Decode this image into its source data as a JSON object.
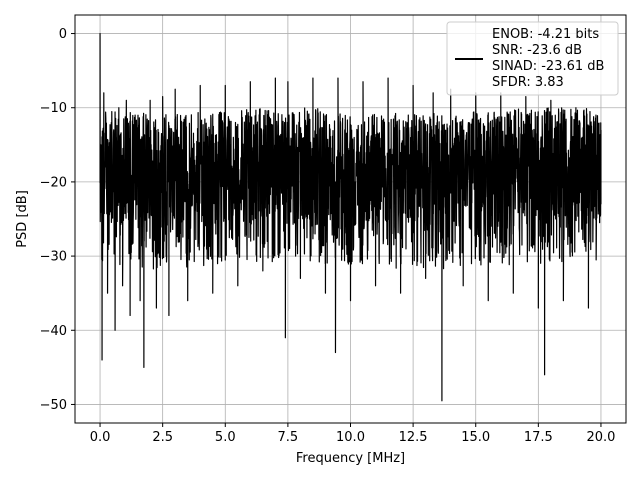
{
  "chart_data": {
    "type": "line",
    "xlabel": "Frequency [MHz]",
    "ylabel": "PSD [dB]",
    "xlim": [
      -1.0,
      21.0
    ],
    "ylim": [
      -52.5,
      2.5
    ],
    "xticks": [
      "0.0",
      "2.5",
      "5.0",
      "7.5",
      "10.0",
      "12.5",
      "15.0",
      "17.5",
      "20.0"
    ],
    "yticks": [
      "0",
      "−10",
      "−20",
      "−30",
      "−40",
      "−50"
    ],
    "grid": true,
    "legend_position": "top-right",
    "legend": [
      "ENOB: -4.21 bits",
      "SNR: -23.6 dB",
      "SINAD: -23.61 dB",
      "SFDR: 3.83"
    ],
    "line_color": "#000000",
    "series": [
      {
        "x": [
          0.0,
          0.03,
          0.08,
          0.15,
          0.3,
          0.45,
          0.6,
          0.75,
          0.9,
          1.05,
          1.2,
          1.4,
          1.6,
          1.75,
          2.0,
          2.25,
          2.5,
          2.75,
          3.0,
          3.5,
          4.0,
          4.5,
          5.0,
          5.5,
          6.0,
          6.5,
          7.0,
          7.4,
          7.5,
          8.0,
          8.5,
          9.0,
          9.4,
          9.5,
          10.0,
          10.5,
          11.0,
          11.5,
          12.0,
          12.5,
          13.0,
          13.3,
          13.65,
          14.0,
          14.5,
          15.0,
          15.5,
          16.0,
          16.5,
          17.0,
          17.5,
          17.75,
          18.0,
          18.5,
          19.0,
          19.5,
          19.8,
          20.0
        ],
        "y": [
          0.0,
          -15.0,
          -44.0,
          -8.0,
          -35.0,
          -12.0,
          -40.0,
          -10.0,
          -34.0,
          -9.0,
          -38.0,
          -11.0,
          -36.0,
          -45.0,
          -9.0,
          -37.0,
          -8.5,
          -38.0,
          -7.5,
          -36.0,
          -7.0,
          -35.0,
          -7.0,
          -34.0,
          -6.5,
          -32.0,
          -6.0,
          -41.0,
          -6.5,
          -33.0,
          -6.0,
          -35.0,
          -43.0,
          -6.0,
          -36.0,
          -6.5,
          -34.0,
          -6.0,
          -35.0,
          -7.0,
          -33.0,
          -8.0,
          -49.5,
          -7.5,
          -34.0,
          -8.0,
          -36.0,
          -8.0,
          -35.0,
          -8.5,
          -37.0,
          -46.0,
          -9.0,
          -36.0,
          -10.0,
          -37.0,
          -11.0,
          -13.0
        ]
      }
    ]
  }
}
